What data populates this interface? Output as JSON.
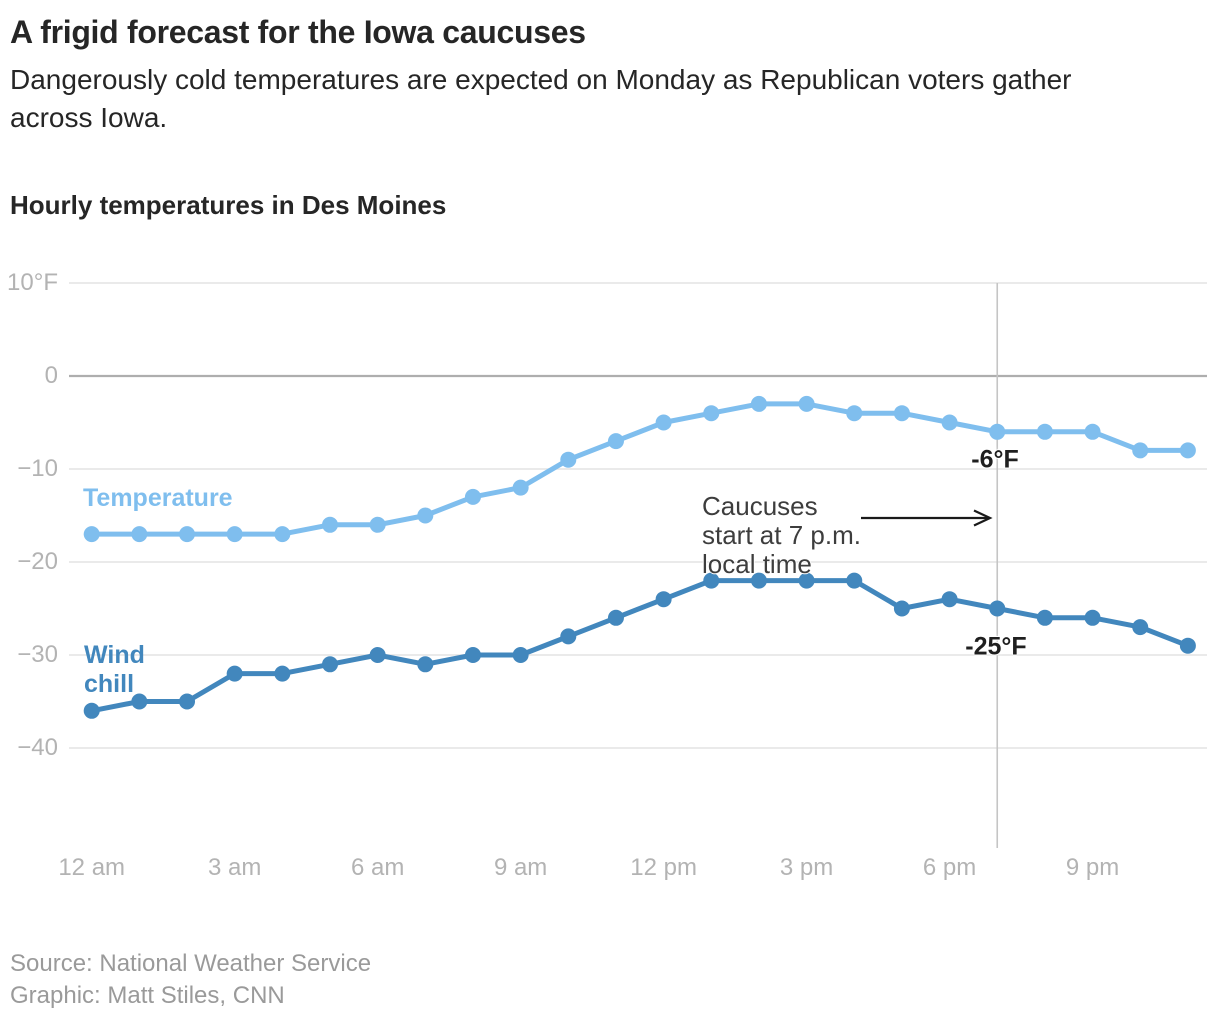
{
  "header": {
    "title": "A frigid forecast for the Iowa caucuses",
    "subtitle": "Dangerously cold temperatures are expected on Monday as Republican voters gather\nacross Iowa."
  },
  "chart": {
    "heading": "Hourly temperatures in Des Moines",
    "series_labels": {
      "temperature": "Temperature",
      "wind_chill": "Wind\nchill"
    },
    "annotation_text": "Caucuses\nstart at 7 p.m.\nlocal time",
    "point_labels": {
      "temperature": "-6°F",
      "wind_chill": "-25°F"
    }
  },
  "footer": {
    "source": "Source: National Weather Service",
    "credit": "Graphic: Matt Stiles, CNN"
  },
  "colors": {
    "temperature": "#7fbeee",
    "wind_chill": "#4287bd",
    "grid": "#e4e4e4",
    "baseline": "#aeaeae",
    "event_line": "#c5c5c5",
    "axis_text": "#b3b3b3",
    "annotation_text": "#3d3d3d",
    "value_label_text": "#1f1f1f",
    "footer_text": "#9a9a9a",
    "arrow": "#1a1a1a"
  },
  "chart_data": {
    "type": "line",
    "title": "Hourly temperatures in Des Moines",
    "xlabel": "",
    "ylabel": "°F",
    "ylim": [
      -45,
      10
    ],
    "grid": true,
    "legend_position": "inline-labels",
    "x_labels": [
      "12 am",
      "1 am",
      "2 am",
      "3 am",
      "4 am",
      "5 am",
      "6 am",
      "7 am",
      "8 am",
      "9 am",
      "10 am",
      "11 am",
      "12 pm",
      "1 pm",
      "2 pm",
      "3 pm",
      "4 pm",
      "5 pm",
      "6 pm",
      "7 pm",
      "8 pm",
      "9 pm",
      "10 pm",
      "11 pm"
    ],
    "x_tick_hours": [
      0,
      3,
      6,
      9,
      12,
      15,
      18,
      21
    ],
    "x_tick_labels": [
      "12 am",
      "3 am",
      "6 am",
      "9 am",
      "12 pm",
      "3 pm",
      "6 pm",
      "9 pm"
    ],
    "y_ticks": [
      {
        "value": 10,
        "label": "10°F"
      },
      {
        "value": 0,
        "label": "0"
      },
      {
        "value": -10,
        "label": "−10"
      },
      {
        "value": -20,
        "label": "−20"
      },
      {
        "value": -30,
        "label": "−30"
      },
      {
        "value": -40,
        "label": "−40"
      }
    ],
    "series": [
      {
        "name": "Temperature",
        "values": [
          -17,
          -17,
          -17,
          -17,
          -17,
          -16,
          -16,
          -15,
          -13,
          -12,
          -9,
          -7,
          -5,
          -4,
          -3,
          -3,
          -4,
          -4,
          -5,
          -6,
          -6,
          -6,
          -8,
          -8
        ]
      },
      {
        "name": "Wind chill",
        "values": [
          -36,
          -35,
          -35,
          -32,
          -32,
          -31,
          -30,
          -31,
          -30,
          -30,
          -28,
          -26,
          -24,
          -22,
          -22,
          -22,
          -22,
          -25,
          -24,
          -25,
          -26,
          -26,
          -27,
          -29
        ]
      }
    ],
    "event_marker": {
      "hour": 19,
      "label": "Caucuses start at 7 p.m. local time"
    },
    "point_callouts": [
      {
        "series": "Temperature",
        "hour": 19,
        "value": -6,
        "text": "-6°F"
      },
      {
        "series": "Wind chill",
        "hour": 19,
        "value": -25,
        "text": "-25°F"
      }
    ]
  }
}
